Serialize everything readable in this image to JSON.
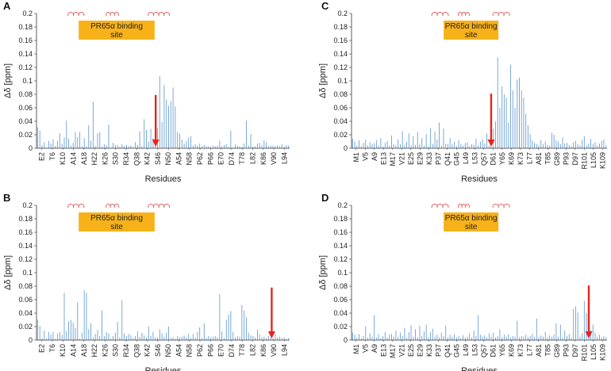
{
  "colors": {
    "bar": "#6a9fd4",
    "arrow": "#e8231c",
    "site_box": "#f7b21a",
    "helix": "#e05a5a",
    "axis": "#333333"
  },
  "chart_data": [
    {
      "panel": "A",
      "type": "bar",
      "ylabel": "Δδ [ppm]",
      "xlabel": "Residues",
      "ylim": [
        0,
        0.2
      ],
      "yticks": [
        "0",
        "0.02",
        "0.04",
        "0.06",
        "0.08",
        "0.1",
        "0.12",
        "0.14",
        "0.16",
        "0.18",
        "0.2"
      ],
      "xticks": [
        "E2",
        "T6",
        "K10",
        "A14",
        "A18",
        "H22",
        "K26",
        "S30",
        "R34",
        "Q38",
        "K42",
        "S46",
        "N50",
        "A54",
        "N58",
        "P62",
        "P66",
        "E70",
        "D74",
        "T78",
        "L82",
        "K86",
        "V90",
        "L94"
      ],
      "site_label": [
        "PR65α binding",
        "site"
      ],
      "helices": [
        [
          3.0,
          4.5
        ],
        [
          6.6,
          7.8
        ],
        [
          10.6,
          12.6
        ]
      ],
      "arrow_x": 11.3,
      "arrow_top": 0.079,
      "values": [
        0.031,
        0.026,
        0.004,
        0.009,
        0.001,
        0.011,
        0.007,
        0.013,
        0.003,
        0.011,
        0.022,
        0.006,
        0.016,
        0.041,
        0.014,
        0.004,
        0.008,
        0.024,
        0.016,
        0.024,
        0.003,
        0.015,
        0.003,
        0.034,
        0.011,
        0.069,
        0.003,
        0.022,
        0.024,
        0.002,
        0.006,
        0.005,
        0.035,
        0.001,
        0.008,
        0.005,
        0.005,
        0.002,
        0.006,
        0.003,
        0.005,
        0.003,
        0.004,
        0.002,
        0.009,
        0.005,
        0.025,
        0.003,
        0.043,
        0.027,
        0.01,
        0.029,
        0.015,
        0.051,
        0.03,
        0.107,
        0.039,
        0.094,
        0.072,
        0.063,
        0.07,
        0.09,
        0.062,
        0.024,
        0.022,
        0.013,
        0.007,
        0.011,
        0.016,
        0.018,
        0.004,
        0.006,
        0.004,
        0.007,
        0.003,
        0.005,
        0.003,
        0.003,
        0.002,
        0.004,
        0.003,
        0.004,
        0.011,
        0.003,
        0.005,
        0.006,
        0.002,
        0.026,
        0.001,
        0.006,
        0.004,
        0.003,
        0.002,
        0.007,
        0.041,
        0.004,
        0.021,
        0.003,
        0.003,
        0.007,
        0.008,
        0.004,
        0.012,
        0.009,
        0.003,
        0.004,
        0.004,
        0.003,
        0.004,
        0.003,
        0.006,
        0.002,
        0.005,
        0.004
      ]
    },
    {
      "panel": "B",
      "type": "bar",
      "ylabel": "Δδ [ppm]",
      "xlabel": "Residues",
      "ylim": [
        0,
        0.2
      ],
      "yticks": [
        "0",
        "0.02",
        "0.04",
        "0.06",
        "0.08",
        "0.1",
        "0.12",
        "0.14",
        "0.16",
        "0.18",
        "0.2"
      ],
      "xticks": [
        "E2",
        "T6",
        "K10",
        "A14",
        "A18",
        "H22",
        "K26",
        "S30",
        "R34",
        "Q38",
        "K42",
        "S46",
        "N50",
        "A54",
        "N58",
        "P62",
        "P66",
        "E70",
        "D74",
        "T78",
        "L82",
        "K86",
        "V90",
        "L94"
      ],
      "site_label": [
        "PR65α binding",
        "site"
      ],
      "helices": [
        [
          3.0,
          4.5
        ],
        [
          6.6,
          7.8
        ],
        [
          10.6,
          12.6
        ]
      ],
      "arrow_x": 22.3,
      "arrow_top": 0.078,
      "values": [
        0.03,
        0.021,
        0.003,
        0.014,
        0.002,
        0.012,
        0.008,
        0.012,
        0.002,
        0.01,
        0.012,
        0.008,
        0.07,
        0.013,
        0.028,
        0.03,
        0.026,
        0.018,
        0.056,
        0.002,
        0.011,
        0.074,
        0.07,
        0.016,
        0.025,
        0.004,
        0.009,
        0.015,
        0.006,
        0.044,
        0.006,
        0.012,
        0.01,
        0.002,
        0.006,
        0.011,
        0.027,
        0.004,
        0.059,
        0.01,
        0.006,
        0.009,
        0.007,
        0.003,
        0.006,
        0.013,
        0.005,
        0.011,
        0.007,
        0.004,
        0.02,
        0.006,
        0.012,
        0.004,
        0.004,
        0.016,
        0.01,
        0.005,
        0.011,
        0.02,
        0.003,
        0.004,
        0.002,
        0.006,
        0.004,
        0.005,
        0.007,
        0.004,
        0.009,
        0.003,
        0.009,
        0.004,
        0.012,
        0.019,
        0.003,
        0.025,
        0.003,
        0.006,
        0.004,
        0.005,
        0.006,
        0.004,
        0.068,
        0.013,
        0.003,
        0.03,
        0.038,
        0.043,
        0.012,
        0.004,
        0.006,
        0.005,
        0.052,
        0.044,
        0.034,
        0.011,
        0.007,
        0.006,
        0.004,
        0.016,
        0.008,
        0.004,
        0.005,
        0.003,
        0.006,
        0.004,
        0.003,
        0.009,
        0.004,
        0.005,
        0.003,
        0.004,
        0.002,
        0.003
      ]
    },
    {
      "panel": "C",
      "type": "bar",
      "ylabel": "Δδ [ppm]",
      "xlabel": "Residues",
      "ylim": [
        0,
        0.2
      ],
      "yticks": [
        "0",
        "0.02",
        "0.04",
        "0.06",
        "0.08",
        "0.1",
        "0.12",
        "0.14",
        "0.16",
        "0.18",
        "0.2"
      ],
      "xticks": [
        "M1",
        "V5",
        "A9",
        "E13",
        "M17",
        "V21",
        "E25",
        "E29",
        "K33",
        "P37",
        "Q41",
        "G45",
        "L49",
        "L53",
        "Q57",
        "D61",
        "Y65",
        "K69",
        "K73",
        "L77",
        "A81",
        "T85",
        "G89",
        "P93",
        "D97",
        "R101",
        "L105",
        "K109"
      ],
      "site_label": [
        "PR65α binding",
        "site"
      ],
      "helices": [
        [
          8.8,
          10.6
        ],
        [
          11.7,
          12.9
        ],
        [
          15.5,
          17.3
        ]
      ],
      "arrow_x": 15.3,
      "arrow_top": 0.081,
      "values": [
        0.014,
        0.01,
        0.004,
        0.012,
        0.003,
        0.008,
        0.013,
        0.004,
        0.009,
        0.006,
        0.007,
        0.012,
        0.004,
        0.015,
        0.003,
        0.008,
        0.011,
        0.004,
        0.019,
        0.006,
        0.004,
        0.013,
        0.006,
        0.025,
        0.005,
        0.01,
        0.022,
        0.004,
        0.018,
        0.005,
        0.024,
        0.006,
        0.015,
        0.004,
        0.021,
        0.003,
        0.03,
        0.006,
        0.025,
        0.013,
        0.038,
        0.004,
        0.029,
        0.007,
        0.006,
        0.015,
        0.006,
        0.01,
        0.003,
        0.012,
        0.006,
        0.004,
        0.008,
        0.009,
        0.003,
        0.006,
        0.005,
        0.014,
        0.004,
        0.01,
        0.013,
        0.007,
        0.022,
        0.004,
        0.006,
        0.029,
        0.04,
        0.135,
        0.06,
        0.092,
        0.08,
        0.075,
        0.038,
        0.124,
        0.086,
        0.06,
        0.102,
        0.105,
        0.086,
        0.075,
        0.051,
        0.034,
        0.021,
        0.012,
        0.008,
        0.006,
        0.004,
        0.012,
        0.006,
        0.01,
        0.005,
        0.004,
        0.023,
        0.02,
        0.012,
        0.01,
        0.006,
        0.016,
        0.007,
        0.008,
        0.005,
        0.003,
        0.009,
        0.011,
        0.006,
        0.004,
        0.012,
        0.018,
        0.004,
        0.007,
        0.014,
        0.006,
        0.009,
        0.004,
        0.007,
        0.011,
        0.013,
        0.004
      ]
    },
    {
      "panel": "D",
      "type": "bar",
      "ylabel": "Δδ [ppm]",
      "xlabel": "Residues",
      "ylim": [
        0,
        0.2
      ],
      "yticks": [
        "0",
        "0.02",
        "0.04",
        "0.06",
        "0.08",
        "0.1",
        "0.12",
        "0.14",
        "0.16",
        "0.18",
        "0.2"
      ],
      "xticks": [
        "M1",
        "V5",
        "A9",
        "E13",
        "M17",
        "V21",
        "E25",
        "E29",
        "K33",
        "P37",
        "Q41",
        "G45",
        "L49",
        "L53",
        "Q57",
        "D61",
        "Y65",
        "K69",
        "K73",
        "L77",
        "A81",
        "T85",
        "G89",
        "P93",
        "D97",
        "R101",
        "L105",
        "K109"
      ],
      "site_label": [
        "PR65α binding",
        "site"
      ],
      "helices": [
        [
          8.8,
          10.6
        ],
        [
          11.7,
          12.9
        ],
        [
          15.5,
          17.3
        ]
      ],
      "arrow_x": 26.0,
      "arrow_top": 0.081,
      "values": [
        0.011,
        0.008,
        0.004,
        0.009,
        0.003,
        0.006,
        0.02,
        0.004,
        0.01,
        0.005,
        0.037,
        0.004,
        0.009,
        0.003,
        0.006,
        0.012,
        0.004,
        0.008,
        0.009,
        0.005,
        0.014,
        0.004,
        0.011,
        0.006,
        0.018,
        0.004,
        0.012,
        0.022,
        0.005,
        0.016,
        0.004,
        0.021,
        0.006,
        0.013,
        0.023,
        0.004,
        0.012,
        0.017,
        0.005,
        0.008,
        0.004,
        0.011,
        0.006,
        0.021,
        0.004,
        0.008,
        0.005,
        0.009,
        0.004,
        0.006,
        0.003,
        0.007,
        0.004,
        0.005,
        0.01,
        0.004,
        0.014,
        0.006,
        0.037,
        0.008,
        0.005,
        0.007,
        0.004,
        0.01,
        0.005,
        0.011,
        0.004,
        0.006,
        0.016,
        0.004,
        0.008,
        0.005,
        0.009,
        0.004,
        0.006,
        0.005,
        0.029,
        0.004,
        0.006,
        0.005,
        0.008,
        0.004,
        0.006,
        0.009,
        0.005,
        0.032,
        0.004,
        0.007,
        0.005,
        0.012,
        0.004,
        0.007,
        0.005,
        0.008,
        0.025,
        0.005,
        0.023,
        0.004,
        0.014,
        0.006,
        0.009,
        0.004,
        0.046,
        0.05,
        0.041,
        0.005,
        0.01,
        0.058,
        0.04,
        0.036,
        0.015,
        0.023,
        0.011,
        0.005,
        0.008,
        0.004,
        0.006,
        0.004
      ]
    }
  ]
}
